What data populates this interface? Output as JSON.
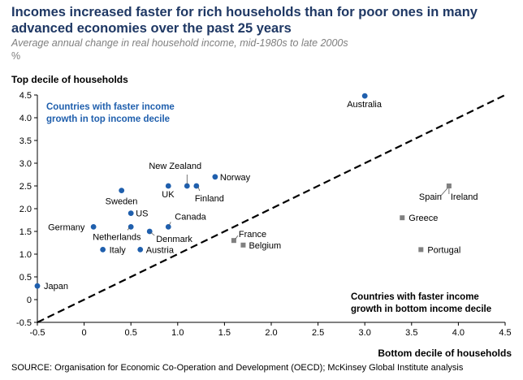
{
  "title": "Incomes increased faster for rich households than for poor ones in many advanced economies over the past 25 years",
  "subtitle": "Average annual change in real household income, mid-1980s to late 2000s",
  "unit": "%",
  "source": "SOURCE: Organisation for Economic Co-Operation and Development (OECD); McKinsey Global Institute analysis",
  "colors": {
    "blue": "#1f5fad",
    "gray": "#808080",
    "top_note": "#1f5fad",
    "bottom_note": "#000000"
  },
  "chart_data": {
    "type": "scatter",
    "xlabel": "Bottom decile of households",
    "ylabel": "Top decile of households",
    "xlim": [
      -0.5,
      4.5
    ],
    "ylim": [
      -0.5,
      4.5
    ],
    "xticks": [
      -0.5,
      0,
      0.5,
      1.0,
      1.5,
      2.0,
      2.5,
      3.0,
      3.5,
      4.0,
      4.5
    ],
    "yticks": [
      -0.5,
      0,
      0.5,
      1.0,
      1.5,
      2.0,
      2.5,
      3.0,
      3.5,
      4.0,
      4.5
    ],
    "xtick_labels": [
      "-0.5",
      "0",
      "0.5",
      "1.0",
      "1.5",
      "2.0",
      "2.5",
      "3.0",
      "3.5",
      "4.0",
      "4.5"
    ],
    "ytick_labels": [
      "-0.5",
      "0",
      "0.5",
      "1.0",
      "1.5",
      "2.0",
      "2.5",
      "3.0",
      "3.5",
      "4.0",
      "4.5"
    ],
    "grid": false,
    "reference_line": "y = x (dashed)",
    "annotations": {
      "top": [
        "Countries with faster income",
        "growth in top income decile"
      ],
      "bottom": [
        "Countries with faster income",
        "growth in bottom income decile"
      ]
    },
    "points": [
      {
        "label": "Australia",
        "x": 3.0,
        "y": 4.48,
        "group": "top"
      },
      {
        "label": "Norway",
        "x": 1.4,
        "y": 2.7,
        "group": "top"
      },
      {
        "label": "New Zealand",
        "x": 1.1,
        "y": 2.5,
        "group": "top"
      },
      {
        "label": "Finland",
        "x": 1.2,
        "y": 2.5,
        "group": "top"
      },
      {
        "label": "UK",
        "x": 0.9,
        "y": 2.5,
        "group": "top"
      },
      {
        "label": "Sweden",
        "x": 0.4,
        "y": 2.4,
        "group": "top"
      },
      {
        "label": "US",
        "x": 0.5,
        "y": 1.9,
        "group": "top"
      },
      {
        "label": "Canada",
        "x": 0.9,
        "y": 1.6,
        "group": "top"
      },
      {
        "label": "Germany",
        "x": 0.1,
        "y": 1.6,
        "group": "top"
      },
      {
        "label": "Netherlands",
        "x": 0.5,
        "y": 1.6,
        "group": "top"
      },
      {
        "label": "Denmark",
        "x": 0.7,
        "y": 1.5,
        "group": "top"
      },
      {
        "label": "Italy",
        "x": 0.2,
        "y": 1.1,
        "group": "top"
      },
      {
        "label": "Austria",
        "x": 0.6,
        "y": 1.1,
        "group": "top"
      },
      {
        "label": "Japan",
        "x": -0.5,
        "y": 0.3,
        "group": "top"
      },
      {
        "label": "Spain",
        "x": 3.9,
        "y": 2.5,
        "group": "bottom"
      },
      {
        "label": "Ireland",
        "x": 3.9,
        "y": 2.5,
        "group": "bottom"
      },
      {
        "label": "Greece",
        "x": 3.4,
        "y": 1.8,
        "group": "bottom"
      },
      {
        "label": "France",
        "x": 1.6,
        "y": 1.3,
        "group": "bottom"
      },
      {
        "label": "Belgium",
        "x": 1.7,
        "y": 1.2,
        "group": "bottom"
      },
      {
        "label": "Portugal",
        "x": 3.6,
        "y": 1.1,
        "group": "bottom"
      }
    ]
  }
}
